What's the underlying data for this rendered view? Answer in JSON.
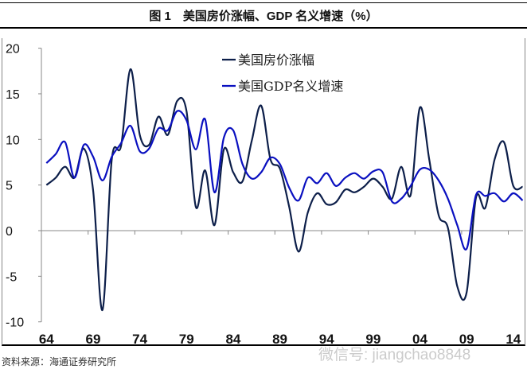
{
  "title": "图 1　美国房价涨幅、GDP 名义增速（%）",
  "source": "资料来源：海通证券研究所",
  "watermark": "微信号: jiangchao8848",
  "chart_data": {
    "type": "line",
    "title": "图 1　美国房价涨幅、GDP 名义增速（%）",
    "xlabel": "",
    "ylabel": "",
    "ylim": [
      -10,
      20
    ],
    "yticks": [
      "20",
      "15",
      "10",
      "5",
      "0",
      "-5",
      "-10"
    ],
    "ytick_values": [
      20,
      15,
      10,
      5,
      0,
      -5,
      -10
    ],
    "xticks": [
      "64",
      "69",
      "74",
      "79",
      "84",
      "89",
      "94",
      "99",
      "04",
      "09",
      "14"
    ],
    "legend_position": "top-center",
    "x": [
      1964,
      1965,
      1966,
      1967,
      1968,
      1969,
      1970,
      1971,
      1972,
      1973,
      1974,
      1975,
      1976,
      1977,
      1978,
      1979,
      1980,
      1981,
      1982,
      1983,
      1984,
      1985,
      1986,
      1987,
      1988,
      1989,
      1990,
      1991,
      1992,
      1993,
      1994,
      1995,
      1996,
      1997,
      1998,
      1999,
      2000,
      2001,
      2002,
      2003,
      2004,
      2005,
      2006,
      2007,
      2008,
      2009,
      2010,
      2011,
      2012,
      2013,
      2014,
      2015
    ],
    "series": [
      {
        "name": "美国房价涨幅",
        "color": "#0d1f4a",
        "values": [
          5.0,
          5.8,
          7.0,
          5.8,
          9.0,
          4.4,
          -8.7,
          7.8,
          9.3,
          17.7,
          10.5,
          9.4,
          12.5,
          10.5,
          14.2,
          13.1,
          2.6,
          6.6,
          0.6,
          8.9,
          6.4,
          5.4,
          9.9,
          13.7,
          7.8,
          6.8,
          2.6,
          -2.3,
          2.0,
          4.1,
          2.9,
          3.1,
          4.5,
          4.2,
          4.8,
          5.7,
          4.8,
          3.5,
          7.0,
          3.9,
          13.5,
          7.8,
          1.7,
          0.3,
          -6.1,
          -6.8,
          3.6,
          2.5,
          7.8,
          9.7,
          4.9,
          4.8
        ]
      },
      {
        "name": "美国GDP名义增速",
        "color": "#0a10c0",
        "values": [
          7.4,
          8.4,
          9.7,
          5.8,
          9.4,
          8.1,
          5.5,
          8.1,
          9.6,
          11.5,
          8.7,
          9.0,
          11.2,
          11.0,
          13.1,
          12.1,
          8.9,
          12.2,
          4.2,
          10.2,
          11.0,
          7.3,
          5.7,
          6.4,
          8.0,
          7.3,
          4.7,
          3.3,
          5.8,
          5.2,
          6.3,
          4.9,
          5.8,
          6.3,
          5.7,
          6.5,
          6.4,
          3.2,
          3.5,
          4.9,
          6.7,
          6.7,
          5.5,
          3.5,
          0.6,
          -2.0,
          3.9,
          3.8,
          4.1,
          3.2,
          4.1,
          3.3
        ]
      }
    ]
  }
}
